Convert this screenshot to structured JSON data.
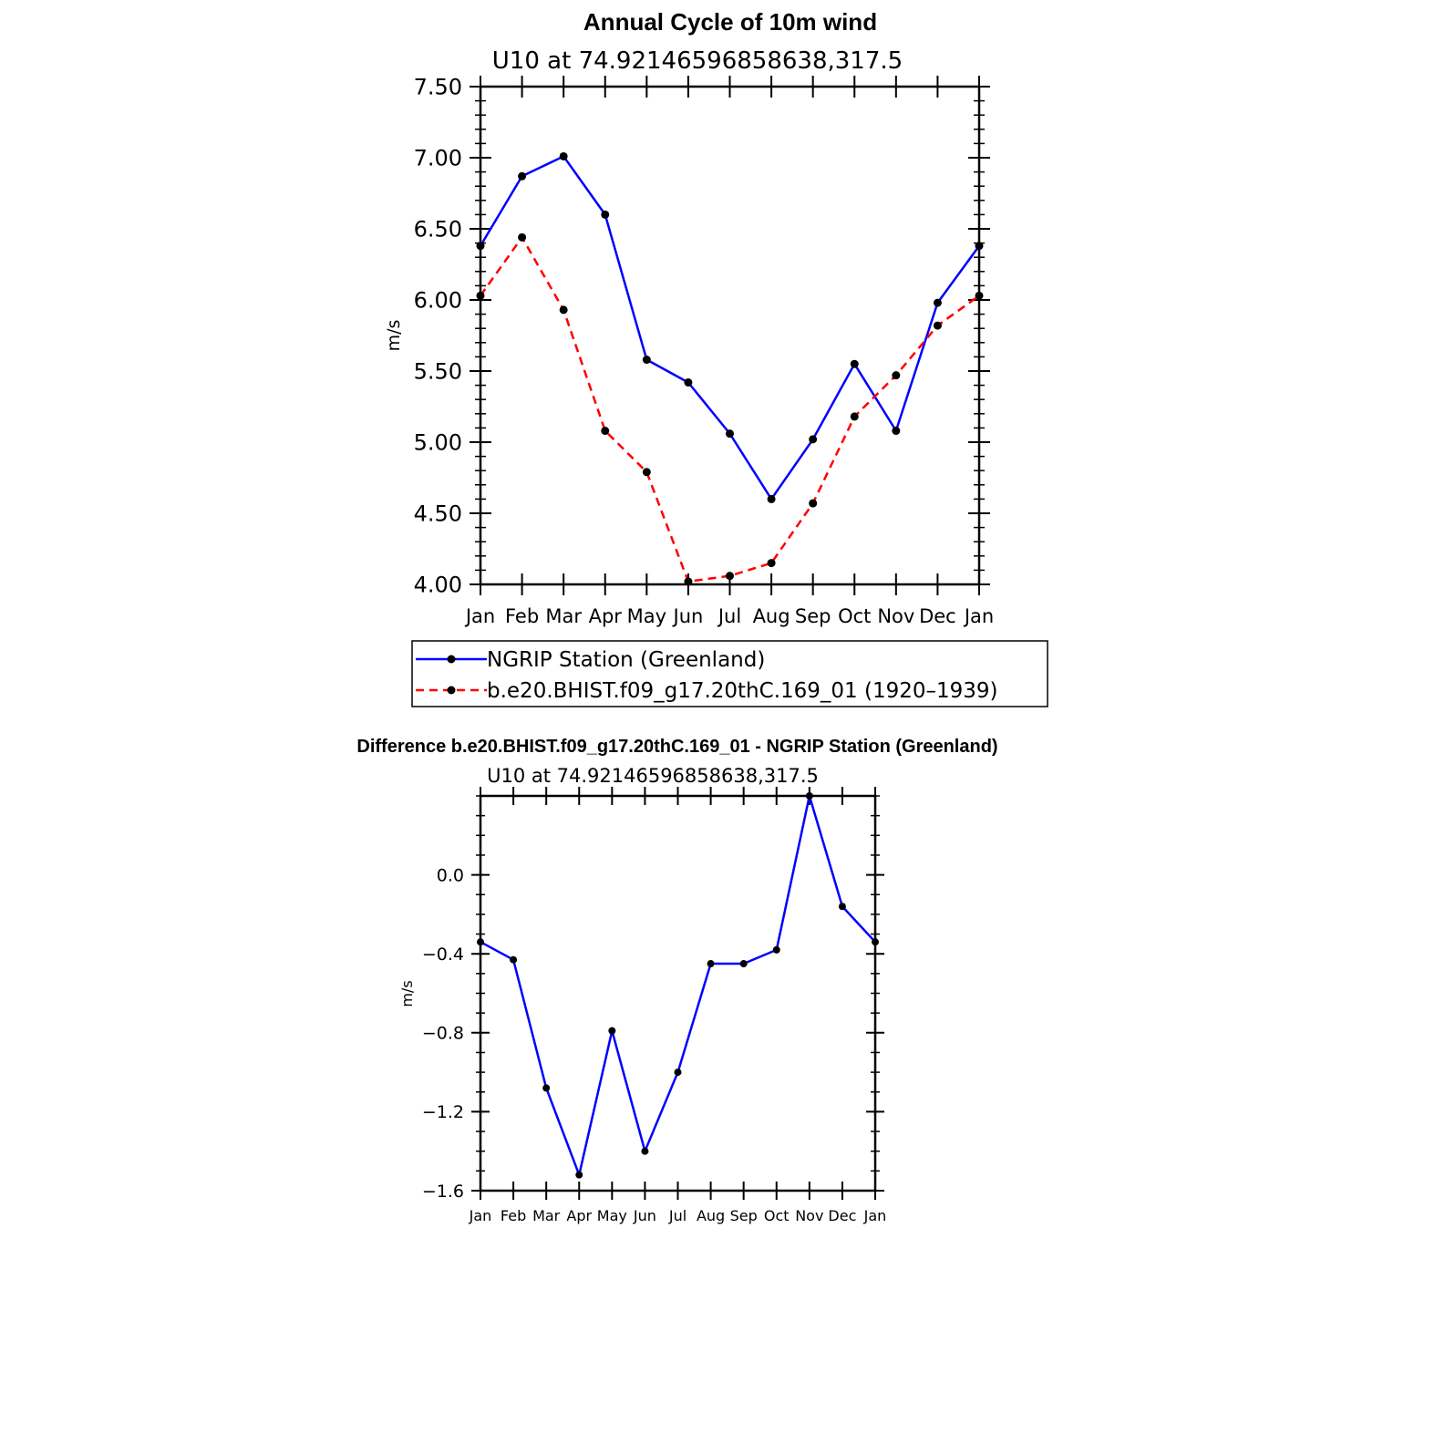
{
  "chart_data": [
    {
      "type": "line",
      "title": "Annual Cycle of 10m wind",
      "subtitle": "U10 at 74.92146596858638,317.5",
      "xlabel": "",
      "ylabel": "m/s",
      "categories": [
        "Jan",
        "Feb",
        "Mar",
        "Apr",
        "May",
        "Jun",
        "Jul",
        "Aug",
        "Sep",
        "Oct",
        "Nov",
        "Dec",
        "Jan"
      ],
      "ylim": [
        4.0,
        7.5
      ],
      "yticks": [
        "4.00",
        "4.50",
        "5.00",
        "5.50",
        "6.00",
        "6.50",
        "7.00",
        "7.50"
      ],
      "grid": false,
      "legend_position": "bottom",
      "series": [
        {
          "name": "NGRIP Station (Greenland)",
          "color": "#0000ff",
          "style": "solid",
          "values": [
            6.38,
            6.87,
            7.01,
            6.6,
            5.58,
            5.42,
            5.06,
            4.6,
            5.02,
            5.55,
            5.08,
            5.98,
            6.38
          ]
        },
        {
          "name": "b.e20.BHIST.f09_g17.20thC.169_01 (1920–1939)",
          "color": "#ff0000",
          "style": "dashed",
          "values": [
            6.03,
            6.44,
            5.93,
            5.08,
            4.79,
            4.02,
            4.06,
            4.15,
            4.57,
            5.18,
            5.47,
            5.82,
            6.03
          ]
        }
      ]
    },
    {
      "type": "line",
      "title": "Difference b.e20.BHIST.f09_g17.20thC.169_01 - NGRIP Station (Greenland)",
      "subtitle": "U10 at 74.92146596858638,317.5",
      "xlabel": "",
      "ylabel": "m/s",
      "categories": [
        "Jan",
        "Feb",
        "Mar",
        "Apr",
        "May",
        "Jun",
        "Jul",
        "Aug",
        "Sep",
        "Oct",
        "Nov",
        "Dec",
        "Jan"
      ],
      "ylim": [
        -1.6,
        0.4
      ],
      "yticks": [
        "−1.6",
        "−1.2",
        "−0.8",
        "−0.4",
        "0.0"
      ],
      "grid": false,
      "series": [
        {
          "name": "Difference",
          "color": "#0000ff",
          "style": "solid",
          "values": [
            -0.34,
            -0.43,
            -1.08,
            -1.52,
            -0.79,
            -1.4,
            -1.0,
            -0.45,
            -0.45,
            -0.38,
            0.4,
            -0.16,
            -0.34
          ]
        }
      ]
    }
  ]
}
